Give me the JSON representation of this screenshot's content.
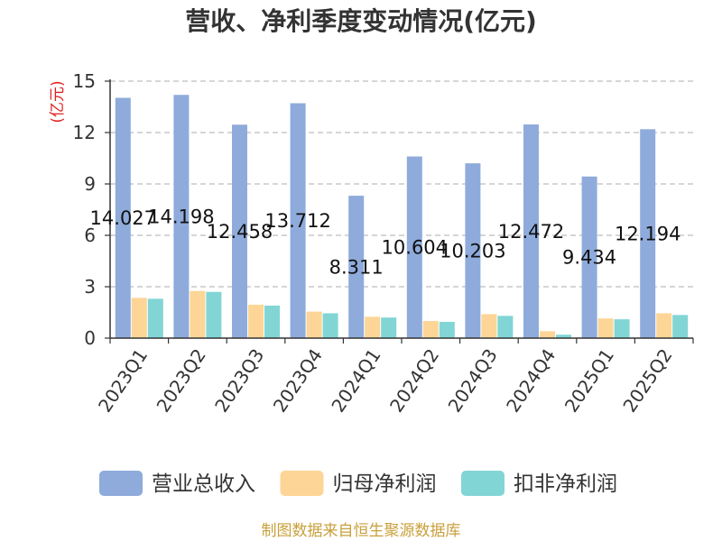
{
  "chart_data": {
    "type": "bar",
    "title": "营收、净利季度变动情况(亿元)",
    "ylabel": "(亿元)",
    "xlabel": "",
    "ylim": [
      0,
      15
    ],
    "yticks": [
      0,
      3,
      6,
      9,
      12,
      15
    ],
    "grid": true,
    "legend_position": "bottom",
    "categories": [
      "2023Q1",
      "2023Q2",
      "2023Q3",
      "2023Q4",
      "2024Q1",
      "2024Q2",
      "2024Q3",
      "2024Q4",
      "2025Q1",
      "2025Q2"
    ],
    "series": [
      {
        "name": "营业总收入",
        "color": "#8eabdb",
        "show_labels": true,
        "values": [
          14.027,
          14.198,
          12.458,
          13.712,
          8.311,
          10.604,
          10.203,
          12.472,
          9.434,
          12.194
        ]
      },
      {
        "name": "归母净利润",
        "color": "#fdd596",
        "show_labels": false,
        "values": [
          2.35,
          2.75,
          1.95,
          1.55,
          1.25,
          1.0,
          1.4,
          0.4,
          1.15,
          1.45
        ]
      },
      {
        "name": "扣非净利润",
        "color": "#82d5d5",
        "show_labels": false,
        "values": [
          2.3,
          2.7,
          1.9,
          1.45,
          1.2,
          0.95,
          1.3,
          0.2,
          1.1,
          1.35
        ]
      }
    ],
    "colors": {
      "ylabel": "#e02020",
      "source": "#c9a03c",
      "grid": "#bdbdbd",
      "axis": "#333333"
    }
  },
  "footer": {
    "source": "制图数据来自恒生聚源数据库"
  }
}
